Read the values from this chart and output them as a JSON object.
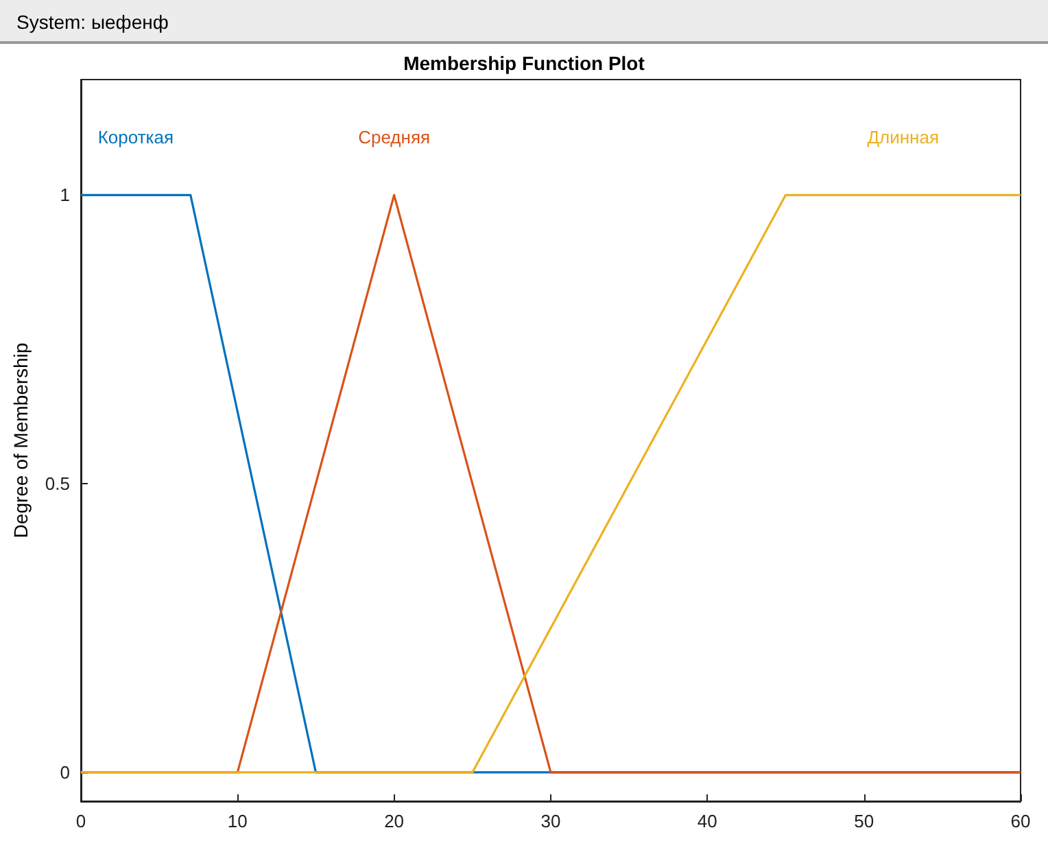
{
  "chart_data": {
    "type": "line",
    "title": "Membership Function Plot",
    "ylabel": "Degree of Membership",
    "annotations": [
      "System: ыефенф"
    ],
    "series": [
      {
        "name": "Короткая",
        "color": "#0072bd",
        "x": [
          0,
          7,
          15,
          60
        ],
        "values": [
          1,
          1,
          0,
          0
        ]
      },
      {
        "name": "Средняя",
        "color": "#d95319",
        "x": [
          0,
          10,
          20,
          30,
          60
        ],
        "values": [
          0,
          0,
          1,
          0,
          0
        ]
      },
      {
        "name": "Длинная",
        "color": "#edb120",
        "x": [
          0,
          25,
          45,
          60
        ],
        "values": [
          0,
          0,
          1,
          1
        ]
      }
    ],
    "xlim": [
      0,
      60
    ],
    "xticks": [
      0,
      10,
      20,
      30,
      40,
      50,
      60
    ],
    "ylim": [
      -0.05,
      1.2
    ],
    "yticks": [
      0,
      0.5,
      1
    ],
    "grid": false,
    "legend": false,
    "marker": "none",
    "line_style": "solid"
  }
}
